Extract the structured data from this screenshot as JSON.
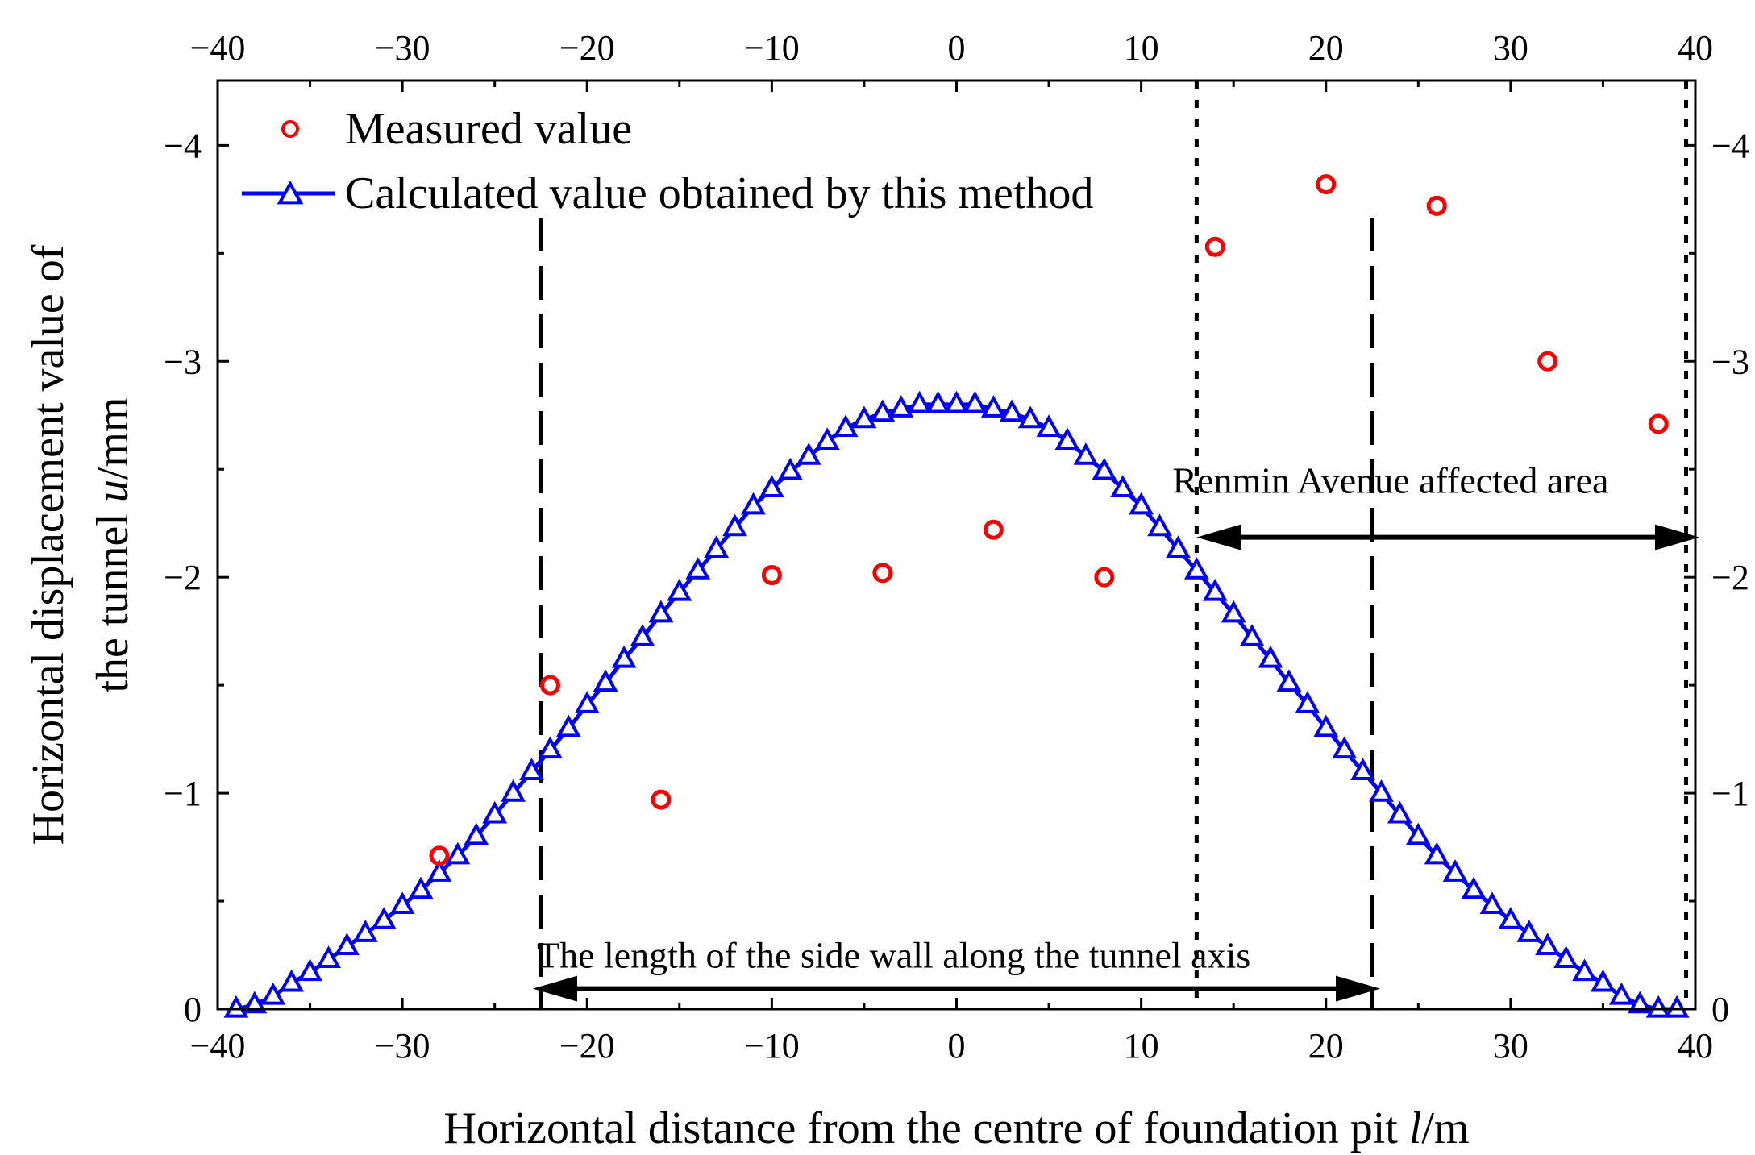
{
  "chart_data": {
    "type": "scatter",
    "title": "",
    "xlabel": "Horizontal distance from the centre of foundation pit l/m",
    "xlabel_prefix": "Horizontal distance from the centre of foundation pit ",
    "xlabel_var": "l",
    "xlabel_unit": "/m",
    "ylabel_line1": "Horizontal displacement value of",
    "ylabel_line2_prefix": "the tunnel ",
    "ylabel_line2_var": "u",
    "ylabel_line2_unit": "/mm",
    "xlim": [
      -40,
      40
    ],
    "ylim": [
      0,
      -4.3
    ],
    "y_inverted": true,
    "x_ticks": [
      -40,
      -30,
      -20,
      -10,
      0,
      10,
      20,
      30,
      40
    ],
    "x_tick_labels": [
      "−40",
      "−30",
      "−20",
      "−10",
      "0",
      "10",
      "20",
      "30",
      "40"
    ],
    "y_ticks": [
      0,
      -1,
      -2,
      -3,
      -4
    ],
    "y_tick_labels": [
      "0",
      "−1",
      "−2",
      "−3",
      "−4"
    ],
    "legend_position": "top-left",
    "series": [
      {
        "name": "Measured value",
        "kind": "scatter",
        "marker": "circle",
        "color": "#ff0000",
        "x": [
          -28,
          -22,
          -16,
          -10,
          -4,
          2,
          8,
          14,
          20,
          26,
          32,
          38
        ],
        "y": [
          -0.71,
          -1.5,
          -0.97,
          -2.01,
          -2.02,
          -2.22,
          -2.0,
          -3.53,
          -3.82,
          -3.72,
          -3.0,
          -2.71
        ]
      },
      {
        "name": "Calculated value obtained by this method",
        "kind": "line",
        "marker": "triangle",
        "color": "#0000ff",
        "x": [
          -39,
          -38,
          -37,
          -36,
          -35,
          -34,
          -33,
          -32,
          -31,
          -30,
          -29,
          -28,
          -27,
          -26,
          -25,
          -24,
          -23,
          -22,
          -21,
          -20,
          -19,
          -18,
          -17,
          -16,
          -15,
          -14,
          -13,
          -12,
          -11,
          -10,
          -9,
          -8,
          -7,
          -6,
          -5,
          -4,
          -3,
          -2,
          -1,
          0,
          1,
          2,
          3,
          4,
          5,
          6,
          7,
          8,
          9,
          10,
          11,
          12,
          13,
          14,
          15,
          16,
          17,
          18,
          19,
          20,
          21,
          22,
          23,
          24,
          25,
          26,
          27,
          28,
          29,
          30,
          31,
          32,
          33,
          34,
          35,
          36,
          37,
          38,
          39
        ],
        "y": [
          0,
          -0.02,
          -0.06,
          -0.12,
          -0.17,
          -0.23,
          -0.29,
          -0.35,
          -0.41,
          -0.48,
          -0.55,
          -0.63,
          -0.71,
          -0.8,
          -0.9,
          -1.0,
          -1.1,
          -1.2,
          -1.3,
          -1.41,
          -1.51,
          -1.62,
          -1.72,
          -1.83,
          -1.93,
          -2.03,
          -2.13,
          -2.23,
          -2.33,
          -2.41,
          -2.49,
          -2.56,
          -2.63,
          -2.69,
          -2.73,
          -2.76,
          -2.78,
          -2.8,
          -2.8,
          -2.8,
          -2.8,
          -2.78,
          -2.76,
          -2.73,
          -2.69,
          -2.63,
          -2.56,
          -2.49,
          -2.41,
          -2.33,
          -2.23,
          -2.13,
          -2.03,
          -1.93,
          -1.83,
          -1.72,
          -1.62,
          -1.51,
          -1.41,
          -1.3,
          -1.2,
          -1.1,
          -1.0,
          -0.9,
          -0.8,
          -0.71,
          -0.63,
          -0.55,
          -0.48,
          -0.41,
          -0.35,
          -0.29,
          -0.23,
          -0.17,
          -0.12,
          -0.06,
          -0.02,
          0,
          0
        ]
      }
    ],
    "vertical_lines": [
      {
        "name": "side-wall-left",
        "x": -22.5,
        "style": "dashed"
      },
      {
        "name": "side-wall-right",
        "x": 22.5,
        "style": "dashed"
      },
      {
        "name": "renmin-left",
        "x": 13,
        "style": "dotted"
      },
      {
        "name": "renmin-right",
        "x": 39.5,
        "style": "dotted"
      }
    ],
    "annotations": [
      {
        "name": "side-wall-length",
        "text": "The length of the side wall along the tunnel axis",
        "x_from": -22.5,
        "x_to": 22.5,
        "y": -0.3
      },
      {
        "name": "renmin-affected",
        "text": "Renmin Avenue affected area",
        "x_from": 13,
        "x_to": 40,
        "y": -2.2
      }
    ]
  },
  "colors": {
    "measured": "#ff0000",
    "calculated": "#0000ff",
    "axis": "#000000"
  }
}
